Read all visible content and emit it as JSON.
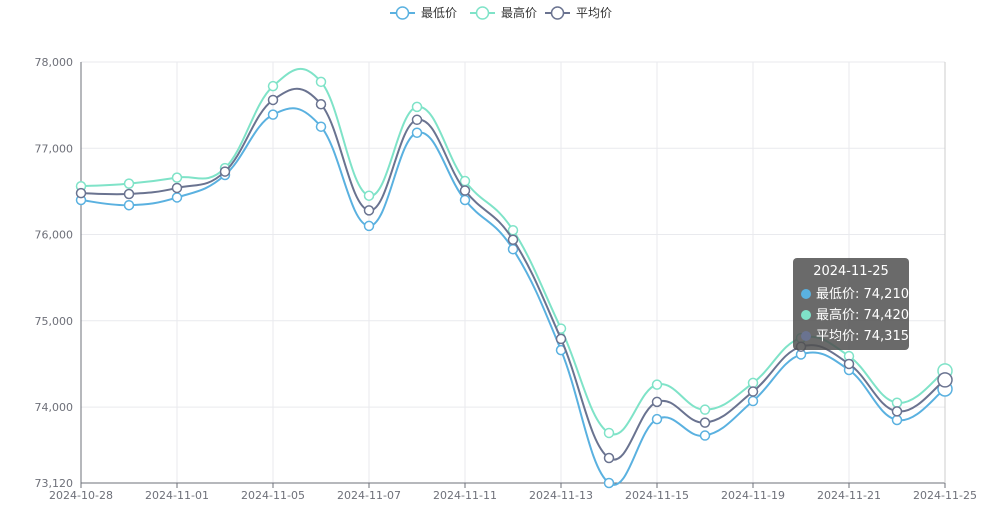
{
  "chart_data": {
    "type": "line",
    "x": [
      "2024-10-28",
      "2024-10-29",
      "2024-11-01",
      "2024-11-04",
      "2024-11-05",
      "2024-11-06",
      "2024-11-07",
      "2024-11-08",
      "2024-11-11",
      "2024-11-12",
      "2024-11-13",
      "2024-11-14",
      "2024-11-15",
      "2024-11-18",
      "2024-11-19",
      "2024-11-20",
      "2024-11-21",
      "2024-11-22",
      "2024-11-25"
    ],
    "xtick_labels": [
      "2024-10-28",
      "2024-11-01",
      "2024-11-05",
      "2024-11-07",
      "2024-11-11",
      "2024-11-13",
      "2024-11-15",
      "2024-11-19",
      "2024-11-21",
      "2024-11-25"
    ],
    "xtick_indices": [
      0,
      2,
      4,
      6,
      8,
      10,
      12,
      14,
      16,
      18
    ],
    "ylim": [
      73120,
      78000
    ],
    "yticks": [
      73120,
      74000,
      75000,
      76000,
      77000,
      78000
    ],
    "ytick_labels": [
      "73,120",
      "74,000",
      "75,000",
      "76,000",
      "77,000",
      "78,000"
    ],
    "series": [
      {
        "name": "最低价",
        "color": "#5ab1e0",
        "values": [
          76400,
          76340,
          76430,
          76690,
          77390,
          77250,
          76100,
          77180,
          76400,
          75830,
          74660,
          73120,
          73860,
          73670,
          74070,
          74610,
          74430,
          73850,
          74210
        ]
      },
      {
        "name": "最高价",
        "color": "#7fe3c8",
        "values": [
          76560,
          76590,
          76660,
          76770,
          77720,
          77770,
          76450,
          77480,
          76620,
          76050,
          74910,
          73700,
          74260,
          73970,
          74280,
          74800,
          74590,
          74050,
          74420
        ]
      },
      {
        "name": "平均价",
        "color": "#6a7390",
        "values": [
          76480,
          76470,
          76540,
          76730,
          77560,
          77510,
          76280,
          77330,
          76510,
          75940,
          74790,
          73410,
          74060,
          73820,
          74180,
          74700,
          74500,
          73950,
          74315
        ]
      }
    ],
    "grid": true,
    "legend_position": "top-center"
  },
  "tooltip": {
    "title": "2024-11-25",
    "rows": [
      {
        "label": "最低价: 74,210",
        "color": "#5ab1e0"
      },
      {
        "label": "最高价: 74,420",
        "color": "#7fe3c8"
      },
      {
        "label": "平均价: 74,315",
        "color": "#6a7390"
      }
    ]
  }
}
